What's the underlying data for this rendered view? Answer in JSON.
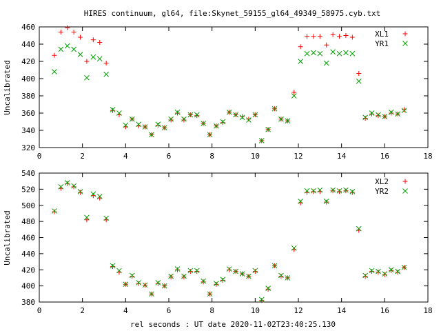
{
  "chart_data": [
    {
      "type": "scatter",
      "title": "HIRES continuum, gl64, file:Skynet_59155_gl64_49349_58975.cyb.txt",
      "xlabel": "",
      "ylabel": "Uncalibrated",
      "xlim": [
        0,
        18
      ],
      "ylim": [
        320,
        460
      ],
      "xticks": [
        "0",
        "2",
        "4",
        "6",
        "8",
        "10",
        "12",
        "14",
        "16",
        "18"
      ],
      "yticks": [
        "320",
        "340",
        "360",
        "380",
        "400",
        "420",
        "440",
        "460"
      ],
      "legend": "top-right",
      "series": [
        {
          "name": "XL1",
          "color": "#ff0000",
          "marker": "plus",
          "x": [
            0.7,
            1.0,
            1.3,
            1.6,
            1.9,
            2.2,
            2.5,
            2.8,
            3.1,
            3.4,
            3.7,
            4.0,
            4.3,
            4.6,
            4.9,
            5.2,
            5.5,
            5.8,
            6.1,
            6.4,
            6.7,
            7.0,
            7.3,
            7.6,
            7.9,
            8.2,
            8.5,
            8.8,
            9.1,
            9.4,
            9.7,
            10.0,
            10.3,
            10.6,
            10.9,
            11.2,
            11.5,
            11.8,
            12.1,
            12.4,
            12.7,
            13.0,
            13.3,
            13.6,
            13.9,
            14.2,
            14.5,
            14.8,
            15.1,
            15.4,
            15.7,
            16.0,
            16.3,
            16.6,
            16.9
          ],
          "values": [
            427,
            454,
            459,
            454,
            448,
            420,
            445,
            442,
            418,
            363,
            358,
            344,
            353,
            345,
            344,
            335,
            346,
            343,
            352,
            360,
            352,
            358,
            357,
            348,
            335,
            345,
            349,
            361,
            358,
            356,
            353,
            358,
            328,
            341,
            365,
            353,
            351,
            384,
            437,
            449,
            449,
            449,
            439,
            451,
            449,
            450,
            448,
            406,
            354,
            359,
            357,
            356,
            360,
            359,
            364
          ]
        },
        {
          "name": "YR1",
          "color": "#00a000",
          "marker": "cross",
          "x": [
            0.7,
            1.0,
            1.3,
            1.6,
            1.9,
            2.2,
            2.5,
            2.8,
            3.1,
            3.4,
            3.7,
            4.0,
            4.3,
            4.6,
            4.9,
            5.2,
            5.5,
            5.8,
            6.1,
            6.4,
            6.7,
            7.0,
            7.3,
            7.6,
            7.9,
            8.2,
            8.5,
            8.8,
            9.1,
            9.4,
            9.7,
            10.0,
            10.3,
            10.6,
            10.9,
            11.2,
            11.5,
            11.8,
            12.1,
            12.4,
            12.7,
            13.0,
            13.3,
            13.6,
            13.9,
            14.2,
            14.5,
            14.8,
            15.1,
            15.4,
            15.7,
            16.0,
            16.3,
            16.6,
            16.9
          ],
          "values": [
            408,
            434,
            438,
            434,
            428,
            401,
            425,
            423,
            405,
            364,
            360,
            346,
            353,
            347,
            344,
            335,
            347,
            343,
            353,
            361,
            353,
            358,
            358,
            348,
            335,
            345,
            350,
            361,
            358,
            355,
            352,
            358,
            328,
            341,
            365,
            353,
            351,
            380,
            420,
            429,
            430,
            429,
            418,
            431,
            429,
            430,
            429,
            397,
            355,
            360,
            358,
            356,
            361,
            359,
            363
          ]
        }
      ]
    },
    {
      "type": "scatter",
      "title": "",
      "xlabel": "rel seconds : UT date 2020-11-02T23:40:25.130",
      "ylabel": "Uncalibrated",
      "xlim": [
        0,
        18
      ],
      "ylim": [
        380,
        540
      ],
      "xticks": [
        "0",
        "2",
        "4",
        "6",
        "8",
        "10",
        "12",
        "14",
        "16",
        "18"
      ],
      "yticks": [
        "380",
        "400",
        "420",
        "440",
        "460",
        "480",
        "500",
        "520",
        "540"
      ],
      "legend": "top-right",
      "series": [
        {
          "name": "XL2",
          "color": "#ff0000",
          "marker": "plus",
          "x": [
            0.7,
            1.0,
            1.3,
            1.6,
            1.9,
            2.2,
            2.5,
            2.8,
            3.1,
            3.4,
            3.7,
            4.0,
            4.3,
            4.6,
            4.9,
            5.2,
            5.5,
            5.8,
            6.1,
            6.4,
            6.7,
            7.0,
            7.3,
            7.6,
            7.9,
            8.2,
            8.5,
            8.8,
            9.1,
            9.4,
            9.7,
            10.0,
            10.3,
            10.6,
            10.9,
            11.2,
            11.5,
            11.8,
            12.1,
            12.4,
            12.7,
            13.0,
            13.3,
            13.6,
            13.9,
            14.2,
            14.5,
            14.8,
            15.1,
            15.4,
            15.7,
            16.0,
            16.3,
            16.6,
            16.9
          ],
          "values": [
            492,
            521,
            527,
            523,
            516,
            482,
            512,
            509,
            482,
            424,
            417,
            402,
            412,
            403,
            401,
            390,
            403,
            400,
            411,
            420,
            411,
            418,
            418,
            405,
            390,
            402,
            407,
            420,
            418,
            415,
            412,
            418,
            382,
            396,
            425,
            412,
            410,
            445,
            503,
            516,
            517,
            517,
            504,
            518,
            517,
            518,
            516,
            469,
            412,
            418,
            417,
            414,
            419,
            417,
            423
          ]
        },
        {
          "name": "YR2",
          "color": "#00a000",
          "marker": "cross",
          "x": [
            0.7,
            1.0,
            1.3,
            1.6,
            1.9,
            2.2,
            2.5,
            2.8,
            3.1,
            3.4,
            3.7,
            4.0,
            4.3,
            4.6,
            4.9,
            5.2,
            5.5,
            5.8,
            6.1,
            6.4,
            6.7,
            7.0,
            7.3,
            7.6,
            7.9,
            8.2,
            8.5,
            8.8,
            9.1,
            9.4,
            9.7,
            10.0,
            10.3,
            10.6,
            10.9,
            11.2,
            11.5,
            11.8,
            12.1,
            12.4,
            12.7,
            13.0,
            13.3,
            13.6,
            13.9,
            14.2,
            14.5,
            14.8,
            15.1,
            15.4,
            15.7,
            16.0,
            16.3,
            16.6,
            16.9
          ],
          "values": [
            493,
            523,
            528,
            524,
            517,
            485,
            514,
            511,
            484,
            425,
            419,
            402,
            413,
            404,
            401,
            390,
            404,
            400,
            412,
            421,
            412,
            419,
            419,
            406,
            390,
            403,
            408,
            421,
            418,
            415,
            412,
            419,
            383,
            397,
            425,
            413,
            410,
            447,
            505,
            518,
            518,
            519,
            505,
            519,
            518,
            519,
            517,
            471,
            413,
            419,
            418,
            415,
            420,
            418,
            423
          ]
        }
      ]
    }
  ]
}
